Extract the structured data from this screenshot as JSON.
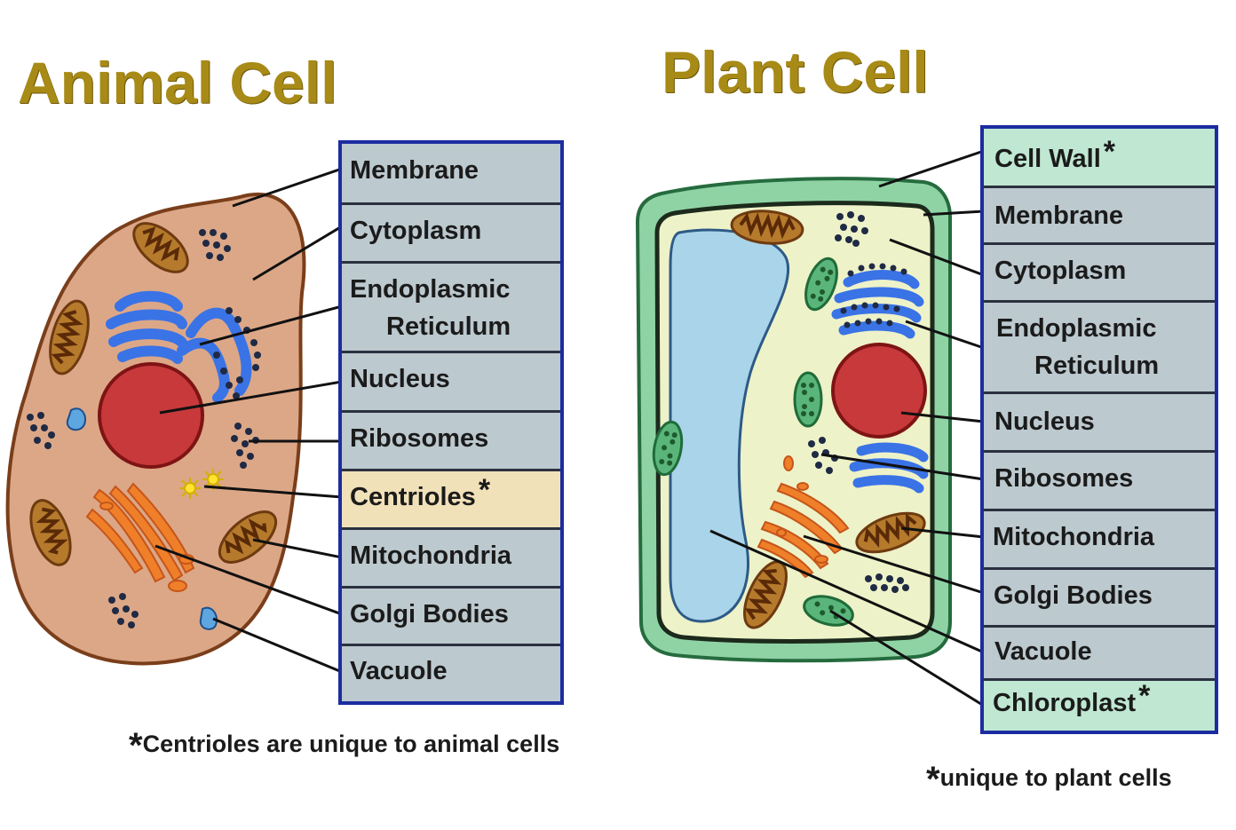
{
  "animal": {
    "title": "Animal Cell",
    "labels": [
      {
        "text": "Membrane",
        "unique": false
      },
      {
        "text": "Cytoplasm",
        "unique": false
      },
      {
        "text": "Endoplasmic",
        "text2": "Reticulum",
        "unique": false
      },
      {
        "text": "Nucleus",
        "unique": false
      },
      {
        "text": "Ribosomes",
        "unique": false
      },
      {
        "text": "Centrioles",
        "unique": true
      },
      {
        "text": "Mitochondria",
        "unique": false
      },
      {
        "text": "Golgi Bodies",
        "unique": false
      },
      {
        "text": "Vacuole",
        "unique": false
      }
    ],
    "footnote_star": "*",
    "footnote": "Centrioles are unique to animal cells"
  },
  "plant": {
    "title": "Plant Cell",
    "labels": [
      {
        "text": "Cell Wall",
        "unique": true
      },
      {
        "text": "Membrane",
        "unique": false
      },
      {
        "text": "Cytoplasm",
        "unique": false
      },
      {
        "text": "Endoplasmic",
        "text2": "Reticulum",
        "unique": false
      },
      {
        "text": "Nucleus",
        "unique": false
      },
      {
        "text": "Ribosomes",
        "unique": false
      },
      {
        "text": "Mitochondria",
        "unique": false
      },
      {
        "text": "Golgi Bodies",
        "unique": false
      },
      {
        "text": "Vacuole",
        "unique": false
      },
      {
        "text": "Chloroplast",
        "unique": true
      }
    ],
    "footnote_star": "*",
    "footnote": "unique to plant cells"
  },
  "star": "*",
  "colors": {
    "title": "#a88a16",
    "legend_border": "#1c2ca0",
    "legend_row": "#bcc9cf",
    "animal_unique_row": "#f1e1b9",
    "plant_unique_row": "#bfe7d2",
    "animal_cytoplasm": "#dca787",
    "plant_cytoplasm": "#eef2c8",
    "cell_wall": "#8fd3a5",
    "nucleus": "#c8393b",
    "er": "#3a73e6",
    "golgi": "#f07f2a",
    "vacuole": "#a9d4ea",
    "mitochondria": "#9a5a24",
    "chloroplast": "#2f8e4e"
  }
}
